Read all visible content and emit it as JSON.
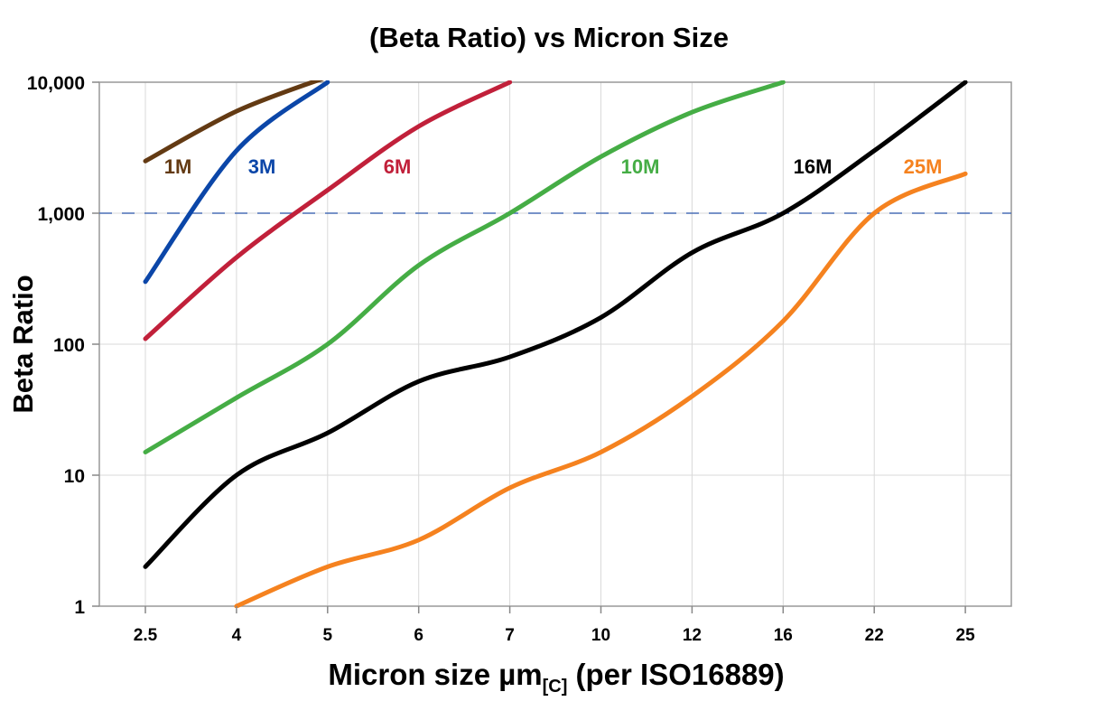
{
  "chart_data": {
    "type": "line",
    "title": "(Beta Ratio) vs Micron Size",
    "xlabel": "Micron size µm",
    "xlabel_subscript": "[C]",
    "xlabel_suffix": " (per ISO16889)",
    "ylabel": "Beta Ratio",
    "yscale": "log",
    "ylim": [
      1,
      10000
    ],
    "y_ticks": [
      "1",
      "10",
      "100",
      "1,000",
      "10,000"
    ],
    "y_tick_values": [
      1,
      10,
      100,
      1000,
      10000
    ],
    "categories": [
      "2.5",
      "4",
      "5",
      "6",
      "7",
      "10",
      "12",
      "16",
      "22",
      "25"
    ],
    "grid": true,
    "reference_line": {
      "value": 1000,
      "style": "dashed",
      "color": "#4a6fb5"
    },
    "series": [
      {
        "name": "1M",
        "color": "#633a13",
        "values": [
          2500,
          6000,
          11000,
          null,
          null,
          null,
          null,
          null,
          null,
          null
        ]
      },
      {
        "name": "3M",
        "color": "#0b46a8",
        "values": [
          300,
          3000,
          10000,
          null,
          null,
          null,
          null,
          null,
          null,
          null
        ]
      },
      {
        "name": "6M",
        "color": "#c1203a",
        "values": [
          110,
          460,
          1500,
          4600,
          10000,
          null,
          null,
          null,
          null,
          null
        ]
      },
      {
        "name": "10M",
        "color": "#45ad45",
        "values": [
          15,
          39,
          100,
          400,
          1000,
          2700,
          5900,
          10000,
          null,
          null
        ]
      },
      {
        "name": "16M",
        "color": "#000000",
        "values": [
          2,
          10,
          21,
          52,
          80,
          160,
          500,
          1000,
          3000,
          10000
        ]
      },
      {
        "name": "25M",
        "color": "#f5821f",
        "values": [
          null,
          1,
          2,
          3.2,
          8,
          15,
          40,
          150,
          1000,
          2000
        ]
      }
    ]
  }
}
